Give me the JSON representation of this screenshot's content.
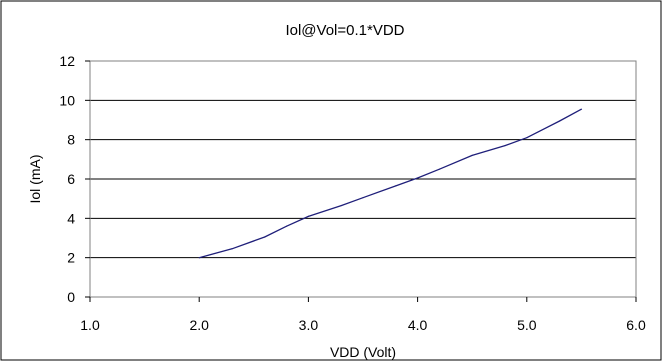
{
  "chart_data": {
    "type": "line",
    "title": "Iol@Vol=0.1*VDD",
    "xlabel": "VDD (Volt)",
    "ylabel": "Iol (mA)",
    "xlim": [
      1.0,
      6.0
    ],
    "ylim": [
      0,
      12
    ],
    "x_ticks": [
      "1.0",
      "2.0",
      "3.0",
      "4.0",
      "5.0",
      "6.0"
    ],
    "y_ticks": [
      "0",
      "2",
      "4",
      "6",
      "8",
      "10",
      "12"
    ],
    "grid": "horizontal",
    "legend": "none",
    "series": [
      {
        "color": "#1f1f7a",
        "x": [
          2.0,
          2.3,
          2.6,
          2.8,
          3.0,
          3.3,
          3.5,
          3.8,
          4.0,
          4.2,
          4.5,
          4.8,
          5.0,
          5.3,
          5.5
        ],
        "y": [
          2.0,
          2.45,
          3.05,
          3.6,
          4.1,
          4.65,
          5.05,
          5.65,
          6.05,
          6.5,
          7.2,
          7.7,
          8.1,
          8.95,
          9.55
        ]
      }
    ]
  }
}
